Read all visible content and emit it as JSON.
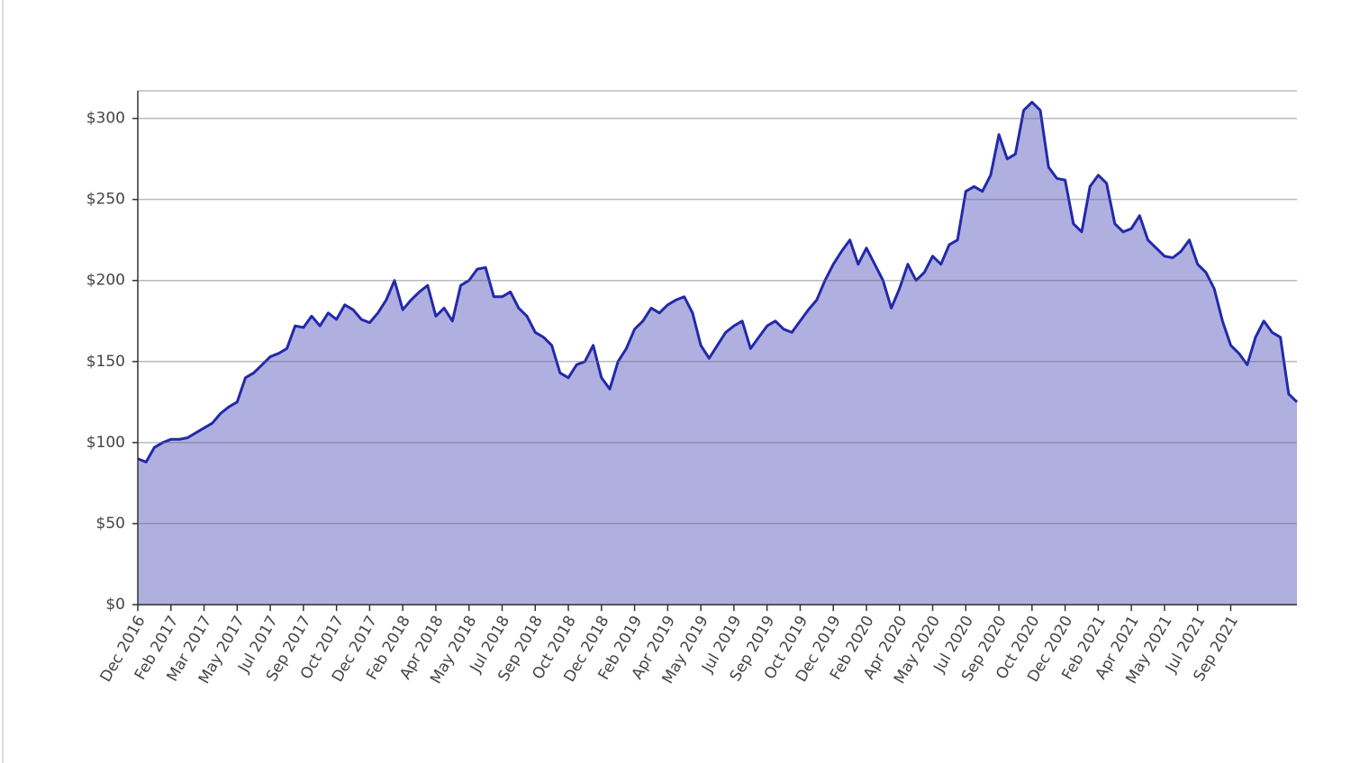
{
  "chart_data": {
    "type": "area",
    "categories": [
      "Dec 2016",
      null,
      null,
      null,
      "Feb 2017",
      null,
      null,
      null,
      "Mar 2017",
      null,
      null,
      null,
      "May 2017",
      null,
      null,
      null,
      "Jul 2017",
      null,
      null,
      null,
      "Sep 2017",
      null,
      null,
      null,
      "Oct 2017",
      null,
      null,
      null,
      "Dec 2017",
      null,
      null,
      null,
      "Feb 2018",
      null,
      null,
      null,
      "Apr 2018",
      null,
      null,
      null,
      "May 2018",
      null,
      null,
      null,
      "Jul 2018",
      null,
      null,
      null,
      "Sep 2018",
      null,
      null,
      null,
      "Oct 2018",
      null,
      null,
      null,
      "Dec 2018",
      null,
      null,
      null,
      "Feb 2019",
      null,
      null,
      null,
      "Apr 2019",
      null,
      null,
      null,
      "May 2019",
      null,
      null,
      null,
      "Jul 2019",
      null,
      null,
      null,
      "Sep 2019",
      null,
      null,
      null,
      "Oct 2019",
      null,
      null,
      null,
      "Dec 2019",
      null,
      null,
      null,
      "Feb 2020",
      null,
      null,
      null,
      "Apr 2020",
      null,
      null,
      null,
      "May 2020",
      null,
      null,
      null,
      "Jul 2020",
      null,
      null,
      null,
      "Sep 2020",
      null,
      null,
      null,
      "Oct 2020",
      null,
      null,
      null,
      "Dec 2020",
      null,
      null,
      null,
      "Feb 2021",
      null,
      null,
      null,
      "Apr 2021",
      null,
      null,
      null,
      "May 2021",
      null,
      null,
      null,
      "Jul 2021",
      null,
      null,
      null,
      "Sep 2021",
      null,
      null,
      null,
      null,
      null,
      null,
      null,
      null
    ],
    "values": [
      90,
      88,
      97,
      100,
      102,
      102,
      103,
      106,
      109,
      112,
      118,
      122,
      125,
      140,
      143,
      148,
      153,
      155,
      158,
      172,
      171,
      178,
      172,
      180,
      176,
      185,
      182,
      176,
      174,
      180,
      188,
      200,
      182,
      188,
      193,
      197,
      178,
      183,
      175,
      197,
      200,
      207,
      208,
      190,
      190,
      193,
      183,
      178,
      168,
      165,
      160,
      143,
      140,
      148,
      150,
      160,
      140,
      133,
      150,
      158,
      170,
      175,
      183,
      180,
      185,
      188,
      190,
      180,
      160,
      152,
      160,
      168,
      172,
      175,
      158,
      165,
      172,
      175,
      170,
      168,
      175,
      182,
      188,
      200,
      210,
      218,
      225,
      210,
      220,
      210,
      200,
      183,
      195,
      210,
      200,
      205,
      215,
      210,
      222,
      225,
      255,
      258,
      255,
      265,
      290,
      275,
      278,
      305,
      310,
      305,
      270,
      263,
      262,
      235,
      230,
      258,
      265,
      260,
      235,
      230,
      232,
      240,
      225,
      220,
      215,
      214,
      218,
      225,
      210,
      205,
      195,
      175,
      160,
      155,
      148,
      165,
      175,
      168,
      165,
      130,
      125
    ],
    "color": "#2229aa",
    "fill": "#b0b0e0",
    "ylim": [
      0,
      317
    ],
    "yticks": [
      {
        "value": 0,
        "label": "$0"
      },
      {
        "value": 50,
        "label": "$50"
      },
      {
        "value": 100,
        "label": "$100"
      },
      {
        "value": 150,
        "label": "$150"
      },
      {
        "value": 200,
        "label": "$200"
      },
      {
        "value": 250,
        "label": "$250"
      },
      {
        "value": 300,
        "label": "$300"
      }
    ],
    "grid": true
  }
}
